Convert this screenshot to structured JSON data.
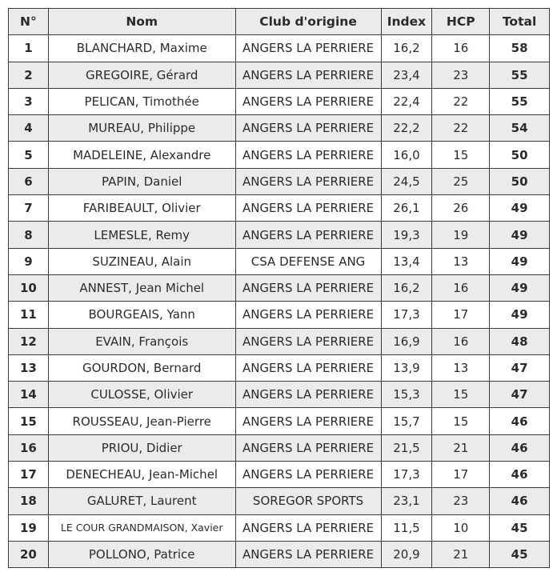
{
  "headers": [
    "N°",
    "Nom",
    "Club d'origine",
    "Index",
    "HCP",
    "Total"
  ],
  "rows": [
    [
      "1",
      "BLANCHARD, Maxime",
      "ANGERS LA PERRIERE",
      "16,2",
      "16",
      "58"
    ],
    [
      "2",
      "GREGOIRE, Gérard",
      "ANGERS LA PERRIERE",
      "23,4",
      "23",
      "55"
    ],
    [
      "3",
      "PELICAN, Timothée",
      "ANGERS LA PERRIERE",
      "22,4",
      "22",
      "55"
    ],
    [
      "4",
      "MUREAU, Philippe",
      "ANGERS LA PERRIERE",
      "22,2",
      "22",
      "54"
    ],
    [
      "5",
      "MADELEINE, Alexandre",
      "ANGERS LA PERRIERE",
      "16,0",
      "15",
      "50"
    ],
    [
      "6",
      "PAPIN, Daniel",
      "ANGERS LA PERRIERE",
      "24,5",
      "25",
      "50"
    ],
    [
      "7",
      "FARIBEAULT, Olivier",
      "ANGERS LA PERRIERE",
      "26,1",
      "26",
      "49"
    ],
    [
      "8",
      "LEMESLE, Remy",
      "ANGERS LA PERRIERE",
      "19,3",
      "19",
      "49"
    ],
    [
      "9",
      "SUZINEAU, Alain",
      "CSA DEFENSE ANG",
      "13,4",
      "13",
      "49"
    ],
    [
      "10",
      "ANNEST, Jean Michel",
      "ANGERS LA PERRIERE",
      "16,2",
      "16",
      "49"
    ],
    [
      "11",
      "BOURGEAIS, Yann",
      "ANGERS LA PERRIERE",
      "17,3",
      "17",
      "49"
    ],
    [
      "12",
      "EVAIN, François",
      "ANGERS LA PERRIERE",
      "16,9",
      "16",
      "48"
    ],
    [
      "13",
      "GOURDON, Bernard",
      "ANGERS LA PERRIERE",
      "13,9",
      "13",
      "47"
    ],
    [
      "14",
      "CULOSSE, Olivier",
      "ANGERS LA PERRIERE",
      "15,3",
      "15",
      "47"
    ],
    [
      "15",
      "ROUSSEAU, Jean-Pierre",
      "ANGERS LA PERRIERE",
      "15,7",
      "15",
      "46"
    ],
    [
      "16",
      "PRIOU, Didier",
      "ANGERS LA PERRIERE",
      "21,5",
      "21",
      "46"
    ],
    [
      "17",
      "DENECHEAU, Jean-Michel",
      "ANGERS LA PERRIERE",
      "17,3",
      "17",
      "46"
    ],
    [
      "18",
      "GALURET, Laurent",
      "SOREGOR SPORTS",
      "23,1",
      "23",
      "46"
    ],
    [
      "19",
      "LE COUR GRANDMAISON, Xavier",
      "ANGERS LA PERRIERE",
      "11,5",
      "10",
      "45"
    ],
    [
      "20",
      "POLLONO, Patrice",
      "ANGERS LA PERRIERE",
      "20,9",
      "21",
      "45"
    ]
  ],
  "colors": {
    "header_bg": "#e9ebed",
    "alt_row_bg": "#e9ebed",
    "border": "#3a3a3a"
  }
}
